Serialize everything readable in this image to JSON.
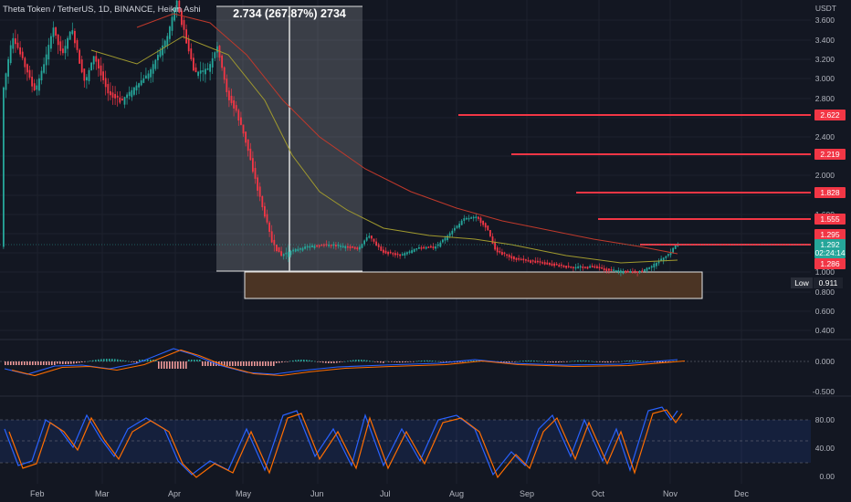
{
  "header": {
    "title": "Theta Token / TetherUS, 1D, BINANCE, Heikin Ashi",
    "currency": "USDT"
  },
  "measure_label": "2.734 (267.87%) 2734",
  "price_axis": [
    "3.600",
    "3.400",
    "3.200",
    "3.000",
    "2.800",
    "2.600",
    "2.400",
    "2.200",
    "2.000",
    "1.800",
    "1.600",
    "1.400",
    "1.200",
    "1.000",
    "0.800",
    "0.600",
    "0.400"
  ],
  "macd_axis": [
    "0.000",
    "-0.500"
  ],
  "stoch_axis": [
    "80.00",
    "40.00",
    "0.00"
  ],
  "time_axis": [
    "Feb",
    "Mar",
    "Apr",
    "May",
    "Jun",
    "Jul",
    "Aug",
    "Sep",
    "Oct",
    "Nov",
    "Dec"
  ],
  "level_tags": [
    {
      "value": "2.622",
      "color": "#f23645"
    },
    {
      "value": "2.219",
      "color": "#f23645"
    },
    {
      "value": "1.828",
      "color": "#f23645"
    },
    {
      "value": "1.555",
      "color": "#f23645"
    },
    {
      "value": "1.295",
      "color": "#f23645"
    },
    {
      "value": "1.292",
      "color": "#26a69a"
    },
    {
      "value": "02:24:14",
      "color": "#26a69a"
    },
    {
      "value": "1.286",
      "color": "#f23645"
    }
  ],
  "low_marker": {
    "label": "Low",
    "value": "0.911"
  },
  "colors": {
    "up": "#26a69a",
    "down": "#f23645",
    "level": "#f23645",
    "bg": "#131722"
  }
}
